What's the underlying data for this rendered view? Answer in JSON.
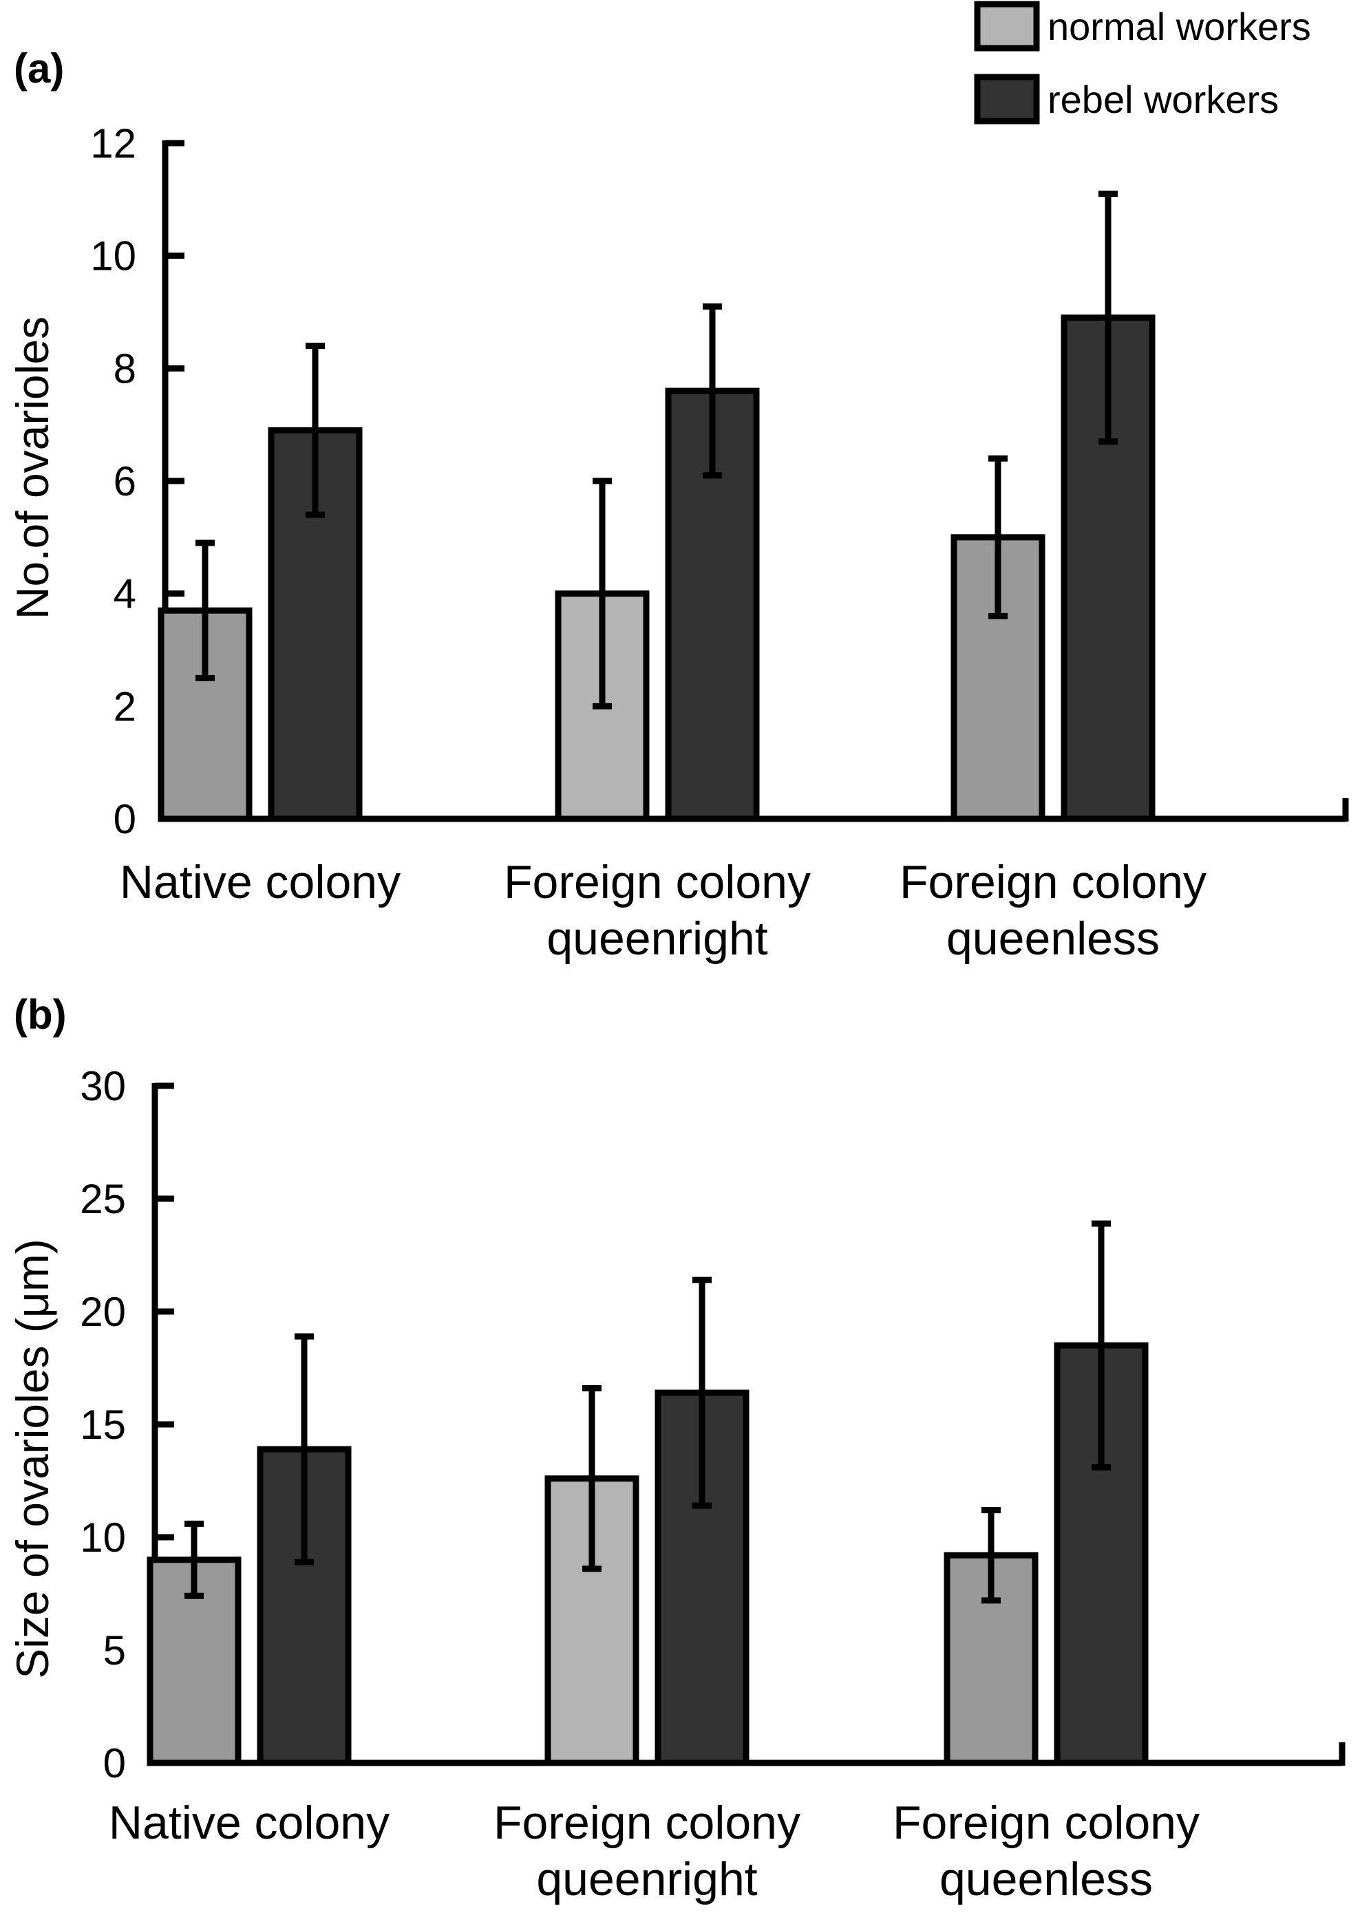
{
  "legend": [
    {
      "label": "normal workers",
      "color": "#b4b4b4"
    },
    {
      "label": "rebel workers",
      "color": "#333333"
    }
  ],
  "chart_data": [
    {
      "type": "bar",
      "panel_label": "(a)",
      "ylabel": "No.of ovarioles",
      "ylim": [
        0,
        12
      ],
      "yticks": [
        0,
        2,
        4,
        6,
        8,
        10,
        12
      ],
      "categories": [
        [
          "Native colony"
        ],
        [
          "Foreign colony",
          "queenright"
        ],
        [
          "Foreign colony",
          "queenless"
        ]
      ],
      "series": [
        {
          "name": "normal workers",
          "values": [
            3.7,
            4.0,
            5.0
          ],
          "errors": [
            1.2,
            2.0,
            1.4
          ],
          "colors": [
            "#999999",
            "#b4b4b4",
            "#999999"
          ]
        },
        {
          "name": "rebel workers",
          "values": [
            6.9,
            7.6,
            8.9
          ],
          "errors": [
            1.5,
            1.5,
            2.2
          ],
          "colors": [
            "#333333",
            "#333333",
            "#333333"
          ]
        }
      ]
    },
    {
      "type": "bar",
      "panel_label": "(b)",
      "ylabel": "Size of ovarioles (μm)",
      "ylim": [
        0,
        30
      ],
      "yticks": [
        0,
        5,
        10,
        15,
        20,
        25,
        30
      ],
      "categories": [
        [
          "Native colony"
        ],
        [
          "Foreign colony",
          "queenright"
        ],
        [
          "Foreign colony",
          "queenless"
        ]
      ],
      "series": [
        {
          "name": "normal workers",
          "values": [
            9.0,
            12.6,
            9.2
          ],
          "errors": [
            1.6,
            4.0,
            2.0
          ],
          "colors": [
            "#999999",
            "#b4b4b4",
            "#999999"
          ]
        },
        {
          "name": "rebel workers",
          "values": [
            13.9,
            16.4,
            18.5
          ],
          "errors": [
            5.0,
            5.0,
            5.4
          ],
          "colors": [
            "#333333",
            "#333333",
            "#333333"
          ]
        }
      ]
    }
  ]
}
